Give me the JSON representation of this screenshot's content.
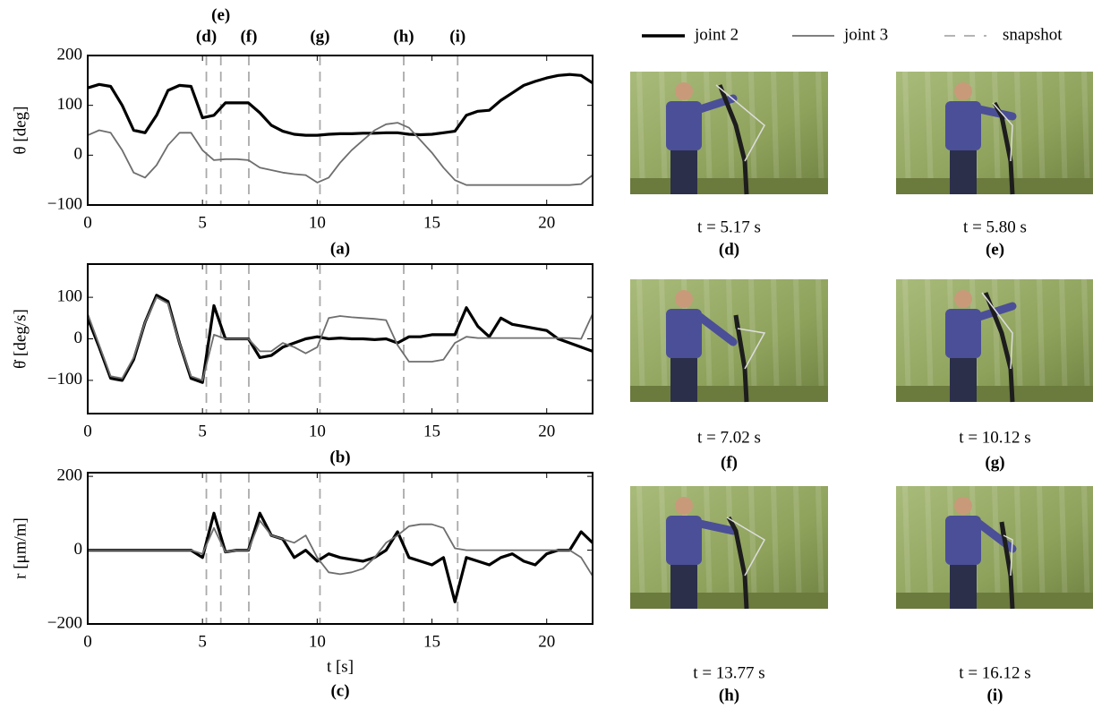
{
  "chart_data": [
    {
      "type": "line",
      "ylabel": "θ [deg]",
      "caption": "(a)",
      "xlim": [
        0,
        22
      ],
      "xticks": [
        0,
        5,
        10,
        15,
        20
      ],
      "ylim": [
        -100,
        200
      ],
      "yticks": [
        {
          "value": -100,
          "label": "−100"
        },
        0,
        100,
        200
      ],
      "x": [
        0,
        0.5,
        1,
        1.5,
        2,
        2.5,
        3,
        3.5,
        4,
        4.5,
        5,
        5.5,
        6,
        6.5,
        7,
        7.5,
        8,
        8.5,
        9,
        9.5,
        10,
        10.5,
        11,
        11.5,
        12,
        12.5,
        13,
        13.5,
        14,
        14.5,
        15,
        15.5,
        16,
        16.5,
        17,
        17.5,
        18,
        18.5,
        19,
        19.5,
        20,
        20.5,
        21,
        21.5,
        22
      ],
      "series": [
        {
          "name": "joint 2",
          "color": "#000000",
          "values": [
            135,
            142,
            138,
            100,
            50,
            45,
            80,
            130,
            140,
            138,
            75,
            80,
            105,
            105,
            105,
            85,
            60,
            48,
            42,
            40,
            40,
            42,
            43,
            43,
            44,
            44,
            45,
            45,
            42,
            41,
            42,
            45,
            48,
            80,
            88,
            90,
            110,
            125,
            140,
            148,
            155,
            160,
            162,
            160,
            145
          ]
        },
        {
          "name": "joint 3",
          "color": "#6e6e6e",
          "values": [
            40,
            50,
            45,
            10,
            -35,
            -45,
            -20,
            20,
            45,
            45,
            10,
            -10,
            -8,
            -8,
            -10,
            -25,
            -30,
            -35,
            -38,
            -40,
            -55,
            -45,
            -15,
            10,
            30,
            50,
            62,
            65,
            55,
            30,
            5,
            -25,
            -50,
            -60,
            -60,
            -60,
            -60,
            -60,
            -60,
            -60,
            -60,
            -60,
            -60,
            -58,
            -40
          ]
        }
      ],
      "snapshots": {
        "name": "snapshot",
        "color": "#aaaaaa",
        "x": [
          5.17,
          5.8,
          7.02,
          10.12,
          13.77,
          16.12
        ],
        "labels": [
          "(d)",
          "(e)",
          "(f)",
          "(g)",
          "(h)",
          "(i)"
        ]
      }
    },
    {
      "type": "line",
      "ylabel": "θ̇ [deg/s]",
      "caption": "(b)",
      "xlim": [
        0,
        22
      ],
      "xticks": [
        0,
        5,
        10,
        15,
        20
      ],
      "ylim": [
        -180,
        180
      ],
      "yticks": [
        {
          "value": -100,
          "label": "−100"
        },
        0,
        100
      ],
      "x": [
        0,
        0.5,
        1,
        1.5,
        2,
        2.5,
        3,
        3.5,
        4,
        4.5,
        5,
        5.5,
        6,
        6.5,
        7,
        7.5,
        8,
        8.5,
        9,
        9.5,
        10,
        10.5,
        11,
        11.5,
        12,
        12.5,
        13,
        13.5,
        14,
        14.5,
        15,
        15.5,
        16,
        16.5,
        17,
        17.5,
        18,
        18.5,
        19,
        19.5,
        20,
        20.5,
        21,
        21.5,
        22
      ],
      "series": [
        {
          "name": "joint 2",
          "color": "#000000",
          "values": [
            50,
            -20,
            -95,
            -100,
            -50,
            40,
            105,
            90,
            -10,
            -95,
            -105,
            80,
            0,
            0,
            0,
            -45,
            -40,
            -20,
            -10,
            0,
            5,
            0,
            2,
            0,
            0,
            -2,
            0,
            -10,
            5,
            5,
            10,
            10,
            10,
            75,
            30,
            5,
            50,
            35,
            30,
            25,
            20,
            0,
            -10,
            -20,
            -30
          ]
        },
        {
          "name": "joint 3",
          "color": "#6e6e6e",
          "values": [
            60,
            -15,
            -90,
            -95,
            -45,
            40,
            100,
            85,
            -10,
            -90,
            -100,
            10,
            0,
            0,
            0,
            -30,
            -30,
            -10,
            -20,
            -35,
            -20,
            50,
            55,
            52,
            50,
            48,
            45,
            -15,
            -55,
            -55,
            -55,
            -50,
            -10,
            5,
            2,
            2,
            2,
            2,
            2,
            2,
            2,
            2,
            2,
            0,
            60
          ]
        }
      ]
    },
    {
      "type": "line",
      "ylabel": "r [μm/m]",
      "caption": "(c)",
      "xlabel": "t [s]",
      "xlim": [
        0,
        22
      ],
      "xticks": [
        0,
        5,
        10,
        15,
        20
      ],
      "ylim": [
        -200,
        210
      ],
      "yticks": [
        {
          "value": -200,
          "label": "−200"
        },
        0,
        200
      ],
      "x": [
        0,
        0.5,
        1,
        1.5,
        2,
        2.5,
        3,
        3.5,
        4,
        4.5,
        5,
        5.5,
        6,
        6.5,
        7,
        7.5,
        8,
        8.5,
        9,
        9.5,
        10,
        10.5,
        11,
        11.5,
        12,
        12.5,
        13,
        13.5,
        14,
        14.5,
        15,
        15.5,
        16,
        16.5,
        17,
        17.5,
        18,
        18.5,
        19,
        19.5,
        20,
        20.5,
        21,
        21.5,
        22
      ],
      "series": [
        {
          "name": "joint 2",
          "color": "#000000",
          "values": [
            0,
            0,
            0,
            0,
            0,
            0,
            0,
            0,
            0,
            0,
            -20,
            100,
            -5,
            0,
            0,
            100,
            40,
            30,
            -20,
            0,
            -30,
            -10,
            -20,
            -25,
            -30,
            -20,
            0,
            50,
            -20,
            -30,
            -40,
            -20,
            -140,
            -20,
            -30,
            -40,
            -20,
            -10,
            -30,
            -40,
            -10,
            0,
            0,
            50,
            20
          ]
        },
        {
          "name": "joint 3",
          "color": "#6e6e6e",
          "values": [
            0,
            0,
            0,
            0,
            0,
            0,
            0,
            0,
            0,
            0,
            -10,
            60,
            -5,
            0,
            0,
            80,
            40,
            30,
            20,
            40,
            -20,
            -60,
            -65,
            -60,
            -50,
            -20,
            20,
            40,
            65,
            70,
            70,
            60,
            5,
            0,
            0,
            0,
            0,
            0,
            0,
            0,
            0,
            0,
            0,
            -20,
            -70
          ]
        }
      ]
    }
  ],
  "photos": [
    {
      "caption": "t =  5.17 s",
      "label": "(d)"
    },
    {
      "caption": "t =  5.80 s",
      "label": "(e)"
    },
    {
      "caption": "t =  7.02 s",
      "label": "(f)"
    },
    {
      "caption": "t =  10.12 s",
      "label": "(g)"
    },
    {
      "caption": "t =  13.77 s",
      "label": "(h)"
    },
    {
      "caption": "t =  16.12 s",
      "label": "(i)"
    }
  ]
}
